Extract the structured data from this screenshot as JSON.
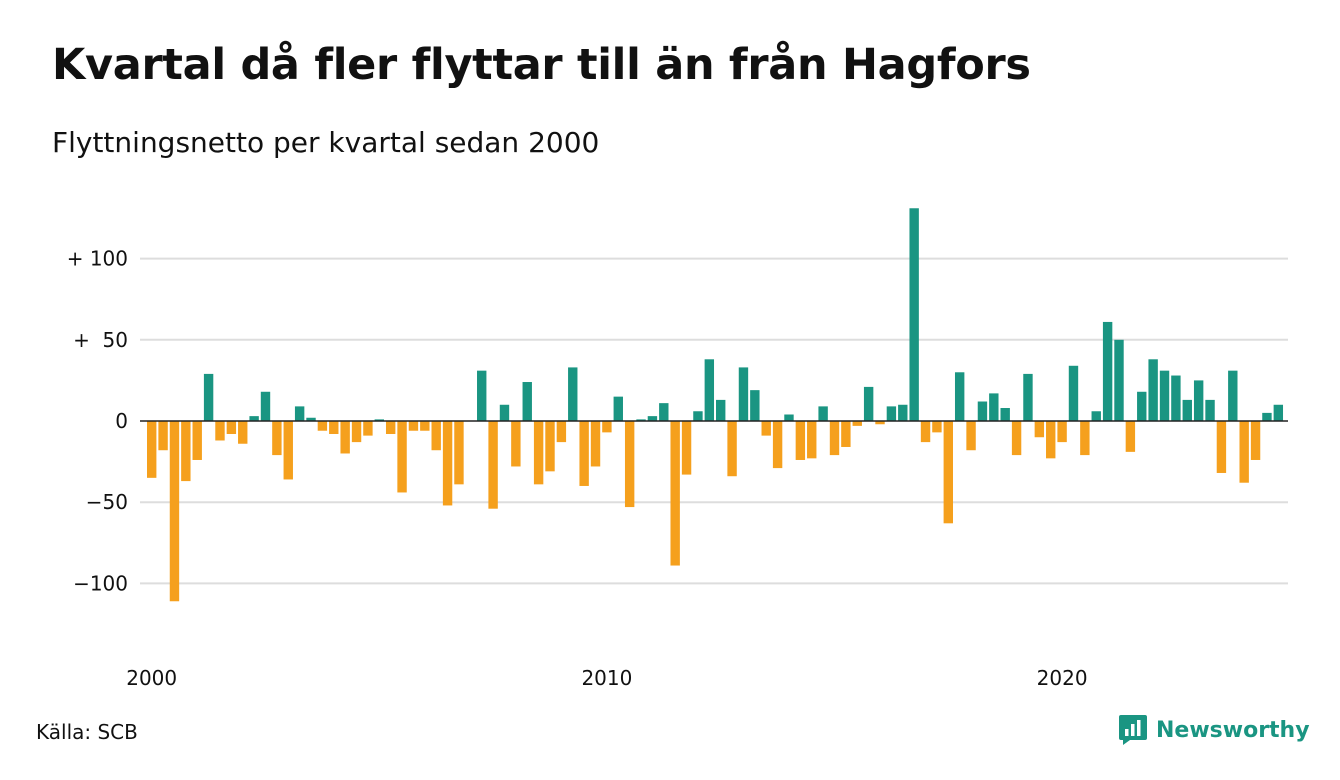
{
  "title": "Kvartal då fler flyttar till än från Hagfors",
  "subtitle": "Flyttningsnetto per kvartal sedan 2000",
  "source": "Källa: SCB",
  "brand": "Newsworthy",
  "colors": {
    "positive": "#1a9582",
    "negative": "#f5a01d",
    "grid": "#dddddd",
    "text": "#111111"
  },
  "chart_data": {
    "type": "bar",
    "title": "Kvartal då fler flyttar till än från Hagfors",
    "subtitle": "Flyttningsnetto per kvartal sedan 2000",
    "x_start": "2000 Q1",
    "x_tick_labels": [
      {
        "label": "2000",
        "quarter_index": 0
      },
      {
        "label": "2010",
        "quarter_index": 40
      },
      {
        "label": "2020",
        "quarter_index": 80
      }
    ],
    "y_ticks": [
      {
        "value": 100,
        "label": "+ 100"
      },
      {
        "value": 50,
        "label": "+  50"
      },
      {
        "value": 0,
        "label": "0"
      },
      {
        "value": -50,
        "label": "−50"
      },
      {
        "value": -100,
        "label": "−100"
      }
    ],
    "ylim": [
      -120,
      135
    ],
    "grid": true,
    "legend": "none",
    "values": [
      -35,
      -18,
      -111,
      -37,
      -24,
      29,
      -12,
      -8,
      -14,
      3,
      18,
      -21,
      -36,
      9,
      2,
      -6,
      -8,
      -20,
      -13,
      -9,
      1,
      -8,
      -44,
      -6,
      -6,
      -18,
      -52,
      -39,
      0,
      31,
      -54,
      10,
      -28,
      24,
      -39,
      -31,
      -13,
      33,
      -40,
      -28,
      -7,
      15,
      -53,
      1,
      3,
      11,
      -89,
      -33,
      6,
      38,
      13,
      -34,
      33,
      19,
      -9,
      -29,
      4,
      -24,
      -23,
      9,
      -21,
      -16,
      -3,
      21,
      -2,
      9,
      10,
      131,
      -13,
      -7,
      -63,
      30,
      -18,
      12,
      17,
      8,
      -21,
      29,
      -10,
      -23,
      -13,
      34,
      -21,
      6,
      61,
      50,
      -19,
      18,
      38,
      31,
      28,
      13,
      25,
      13,
      -32,
      31,
      -38,
      -24,
      5,
      10
    ]
  }
}
